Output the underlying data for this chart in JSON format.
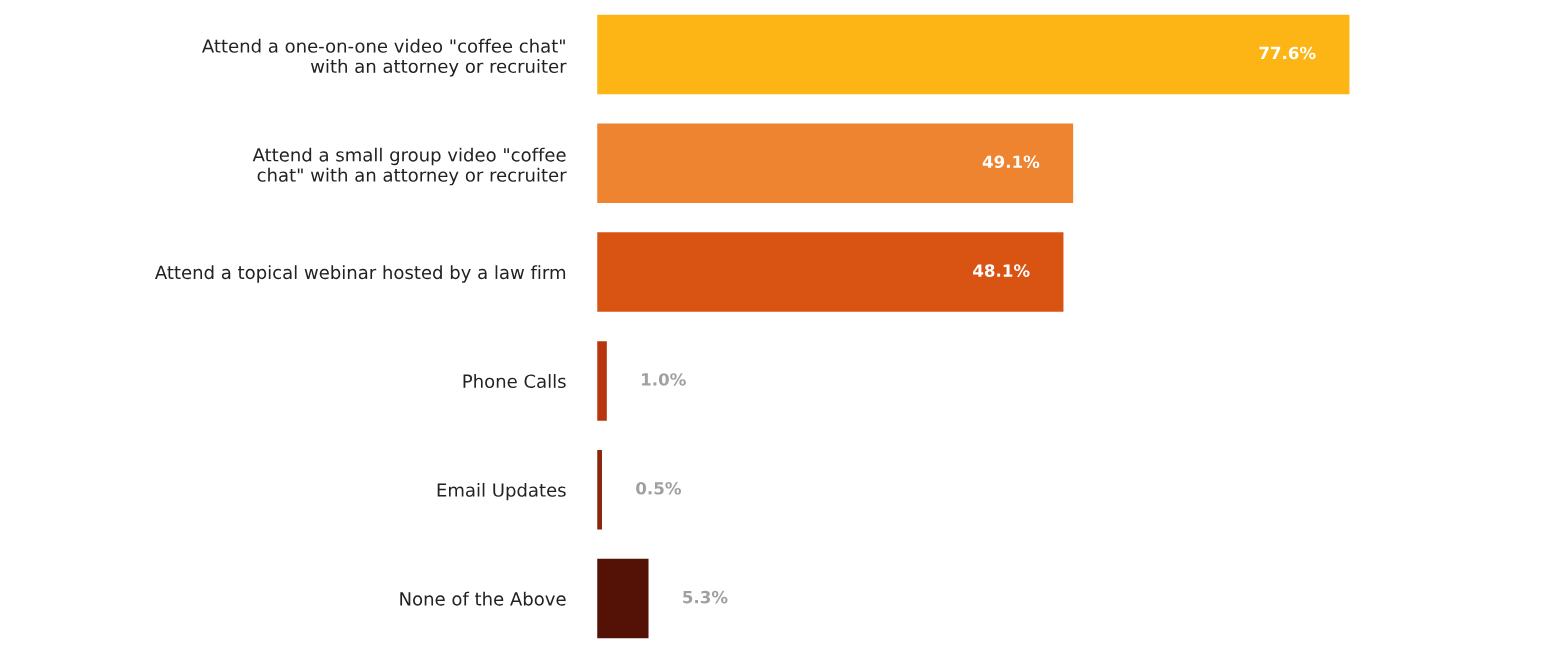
{
  "chart_data": {
    "type": "bar",
    "orientation": "horizontal",
    "categories": [
      "Attend a one-on-one video \"coffee chat\"\nwith an attorney or recruiter",
      "Attend a small group video \"coffee\nchat\" with an attorney or recruiter",
      "Attend a topical webinar hosted by a law firm",
      "Phone Calls",
      "Email Updates",
      "None of the Above"
    ],
    "values": [
      77.6,
      49.1,
      48.1,
      1.0,
      0.5,
      5.3
    ],
    "colors": [
      "#fdb515",
      "#ef8430",
      "#d95413",
      "#b8360f",
      "#8a260b",
      "#541206"
    ],
    "value_labels": [
      "77.6%",
      "49.1%",
      "48.1%",
      "1.0%",
      "0.5%",
      "5.3%"
    ],
    "grid": false,
    "legend": false,
    "tick_labels": "y"
  }
}
